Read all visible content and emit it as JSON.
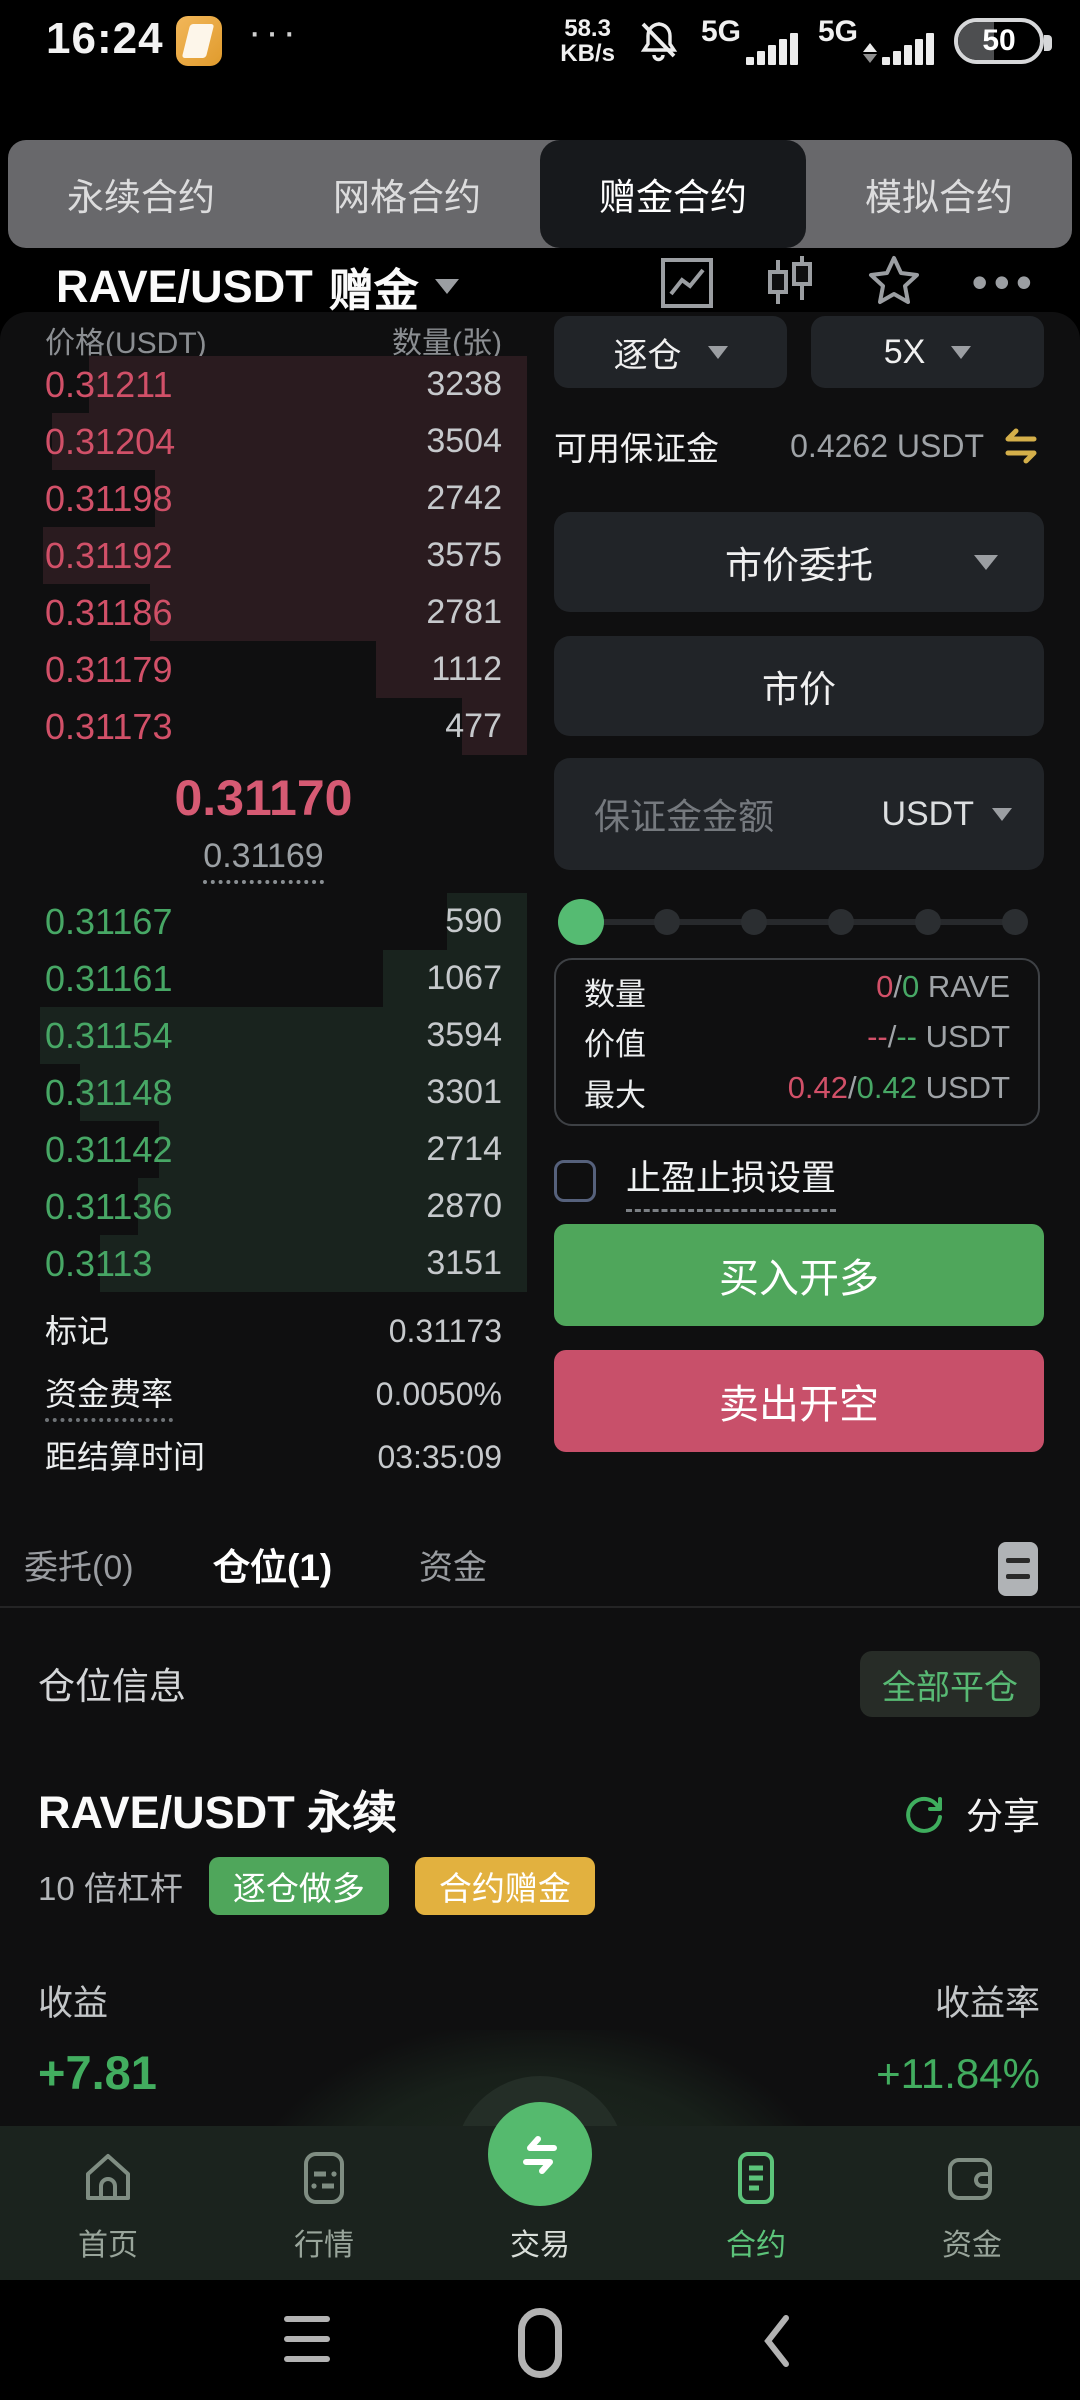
{
  "status_bar": {
    "time": "16:24",
    "overflow_dots": "···",
    "net_speed_value": "58.3",
    "net_speed_unit": "KB/s",
    "sim1_network": "5G",
    "sim2_network": "5G",
    "battery_percent": "50"
  },
  "contract_tabs": {
    "items": [
      {
        "label": "永续合约",
        "active": false
      },
      {
        "label": "网格合约",
        "active": false
      },
      {
        "label": "赠金合约",
        "active": true
      },
      {
        "label": "模拟合约",
        "active": false
      }
    ]
  },
  "pair_header": {
    "symbol": "RAVE/USDT",
    "tag": "赠金"
  },
  "orderbook": {
    "price_header": "价格(USDT)",
    "qty_header": "数量(张)",
    "asks": [
      {
        "price": "0.31211",
        "qty": 3238
      },
      {
        "price": "0.31204",
        "qty": 3504
      },
      {
        "price": "0.31198",
        "qty": 2742
      },
      {
        "price": "0.31192",
        "qty": 3575
      },
      {
        "price": "0.31186",
        "qty": 2781
      },
      {
        "price": "0.31179",
        "qty": 1112
      },
      {
        "price": "0.31173",
        "qty": 477
      }
    ],
    "last_price": "0.31170",
    "index_price": "0.31169",
    "bids": [
      {
        "price": "0.31167",
        "qty": 590
      },
      {
        "price": "0.31161",
        "qty": 1067
      },
      {
        "price": "0.31154",
        "qty": 3594
      },
      {
        "price": "0.31148",
        "qty": 3301
      },
      {
        "price": "0.31142",
        "qty": 2714
      },
      {
        "price": "0.31136",
        "qty": 2870
      },
      {
        "price": "0.3113",
        "qty": 3151
      }
    ],
    "mark_label": "标记",
    "mark_value": "0.31173",
    "funding_label": "资金费率",
    "funding_value": "0.0050%",
    "settle_label": "距结算时间",
    "settle_value": "03:35:09"
  },
  "trade_panel": {
    "margin_mode": "逐仓",
    "leverage": "5X",
    "available_label": "可用保证金",
    "available_value": "0.4262 USDT",
    "order_type": "市价委托",
    "price_mode": "市价",
    "amount_placeholder": "保证金金额",
    "amount_unit": "USDT",
    "info": {
      "qty_label": "数量",
      "qty_buy": "0",
      "qty_sell": "0",
      "qty_unit": " RAVE",
      "val_label": "价值",
      "val_buy": "--",
      "val_sell": "--",
      "val_unit": " USDT",
      "max_label": "最大",
      "max_buy": "0.42",
      "max_sell": "0.42",
      "max_unit": " USDT"
    },
    "tpsl_label": "止盈止损设置",
    "buy_label": "买入开多",
    "sell_label": "卖出开空"
  },
  "position_tabs": {
    "orders": "委托(0)",
    "positions": "仓位(1)",
    "assets": "资金"
  },
  "position_section": {
    "title": "仓位信息",
    "close_all": "全部平仓",
    "pair": "RAVE/USDT 永续",
    "share": "分享",
    "leverage_text": "10 倍杠杆",
    "badge_mode": "逐仓做多",
    "badge_bonus": "合约赠金",
    "pnl_label": "收益",
    "roe_label": "收益率",
    "pnl_value": "+7.81",
    "roe_value": "+11.84%"
  },
  "bottom_nav": {
    "items": [
      {
        "label": "首页",
        "active": false
      },
      {
        "label": "行情",
        "active": false
      },
      {
        "label": "交易",
        "active": false
      },
      {
        "label": "合约",
        "active": true
      },
      {
        "label": "资金",
        "active": false
      }
    ]
  },
  "colors": {
    "ask_text": "#d15068",
    "bid_text": "#47a765",
    "buy_button": "#4fa65b",
    "sell_button": "#c8506a",
    "accent_green": "#5cc47a",
    "badge_gold": "#e2b13f",
    "transfer_gold": "#d4af4a"
  }
}
